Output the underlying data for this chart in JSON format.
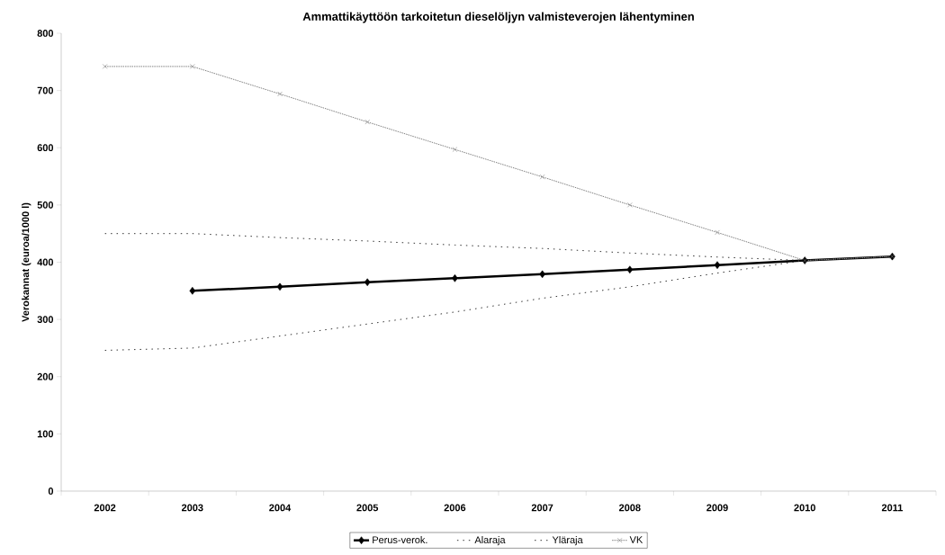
{
  "chart_data": {
    "type": "line",
    "title": "Ammattikäyttöön tarkoitetun dieselöljyn valmisteverojen lähentyminen",
    "ylabel": "Verokannat (euroa/1000 l)",
    "categories": [
      "2002",
      "2003",
      "2004",
      "2005",
      "2006",
      "2007",
      "2008",
      "2009",
      "2010",
      "2011"
    ],
    "ylim": [
      0,
      800
    ],
    "yticks": [
      0,
      100,
      200,
      300,
      400,
      500,
      600,
      700,
      800
    ],
    "grid": false,
    "legend": "bottom",
    "series": [
      {
        "name": "Perus-verok.",
        "color": "#000000",
        "marker": "diamond",
        "line_style": "solid",
        "values": [
          null,
          350,
          357,
          365,
          372,
          379,
          387,
          395,
          403,
          410
        ]
      },
      {
        "name": "Alaraja",
        "color": "#333333",
        "marker": "none",
        "line_style": "dotted",
        "values": [
          246,
          250,
          271,
          292,
          313,
          337,
          357,
          381,
          403,
          410
        ]
      },
      {
        "name": "Yläraja",
        "color": "#333333",
        "marker": "none",
        "line_style": "dotted",
        "values": [
          450,
          450,
          443,
          437,
          430,
          424,
          416,
          409,
          403,
          410
        ]
      },
      {
        "name": "VK",
        "color": "#808080",
        "marker": "cross",
        "line_style": "dashed",
        "values": [
          742,
          742,
          694,
          645,
          597,
          549,
          500,
          452,
          403,
          410
        ]
      }
    ]
  }
}
